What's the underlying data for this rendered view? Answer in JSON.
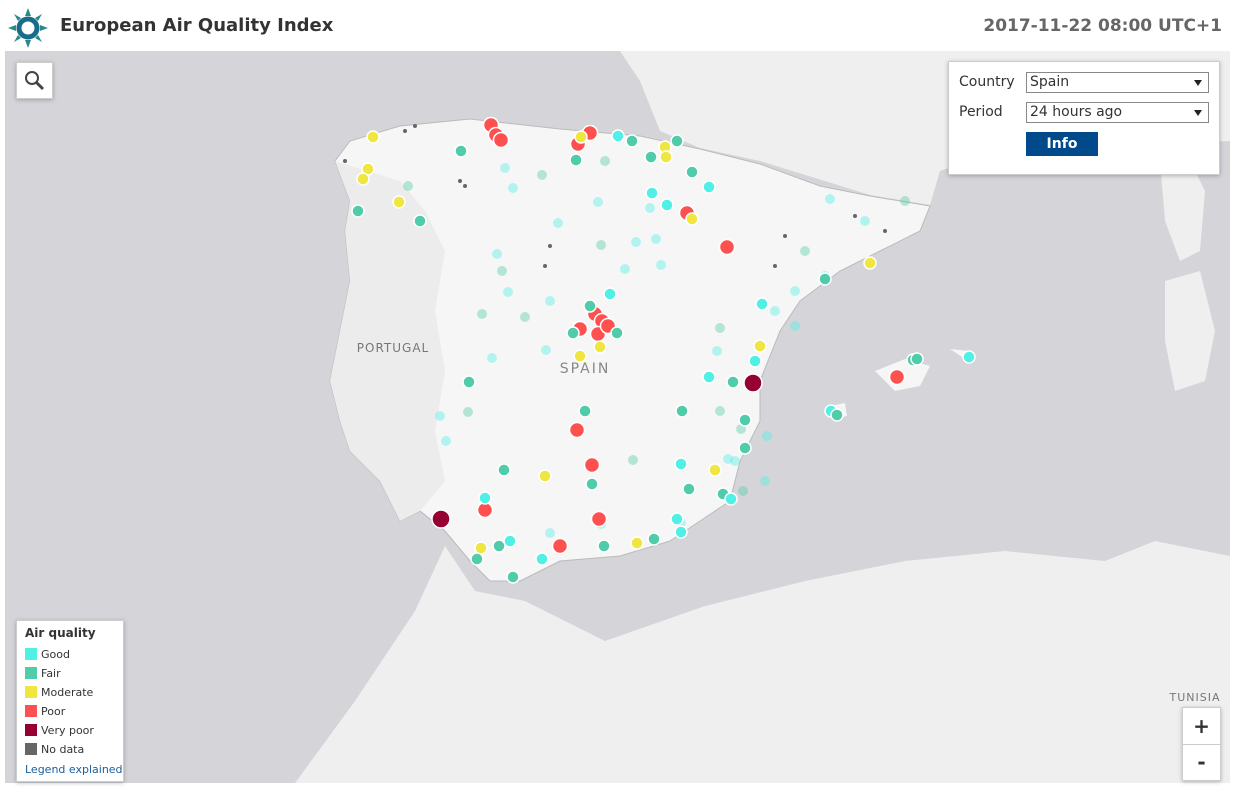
{
  "header": {
    "title": "European Air Quality Index",
    "timestamp": "2017-11-22 08:00 UTC+1"
  },
  "controls": {
    "country_label": "Country",
    "country": "Spain",
    "period_label": "Period",
    "period": "24 hours ago",
    "info_button": "Info"
  },
  "legend": {
    "title": "Air quality",
    "items": [
      {
        "label": "Good",
        "color": "#50f0e6"
      },
      {
        "label": "Fair",
        "color": "#50ccaa"
      },
      {
        "label": "Moderate",
        "color": "#f0e641"
      },
      {
        "label": "Poor",
        "color": "#ff5050"
      },
      {
        "label": "Very poor",
        "color": "#960032"
      },
      {
        "label": "No data",
        "color": "#666666"
      }
    ],
    "link": "Legend explained"
  },
  "map_labels": [
    "PORTUGAL",
    "SPAIN",
    "TUNISIA"
  ],
  "zoom": {
    "in": "+",
    "out": "-"
  }
}
